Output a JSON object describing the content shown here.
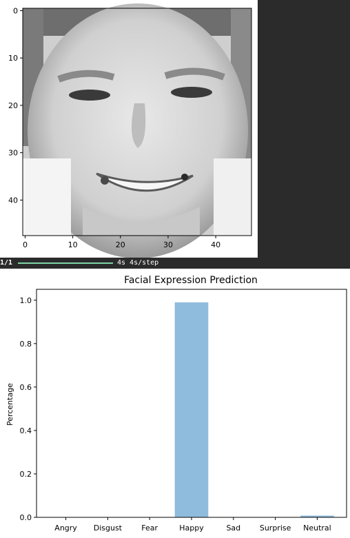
{
  "image_panel": {
    "x_ticks": [
      "0",
      "10",
      "20",
      "30",
      "40"
    ],
    "y_ticks": [
      "0",
      "10",
      "20",
      "30",
      "40"
    ]
  },
  "progress": {
    "step": "1/1",
    "fraction_complete": 1.0,
    "timing": "4s 4s/step",
    "bar_color": "#7fd6a6"
  },
  "chart_data": {
    "type": "bar",
    "title": "Facial Expression Prediction",
    "xlabel": "",
    "ylabel": "Percentage",
    "categories": [
      "Angry",
      "Disgust",
      "Fear",
      "Happy",
      "Sad",
      "Surprise",
      "Neutral"
    ],
    "values": [
      0.0,
      0.0,
      0.0,
      0.99,
      0.0,
      0.0,
      0.008
    ],
    "ylim": [
      0,
      1.05
    ],
    "yticks": [
      "0.0",
      "0.2",
      "0.4",
      "0.6",
      "0.8",
      "1.0"
    ],
    "bar_color": "#8fbcdc",
    "grid": false
  }
}
